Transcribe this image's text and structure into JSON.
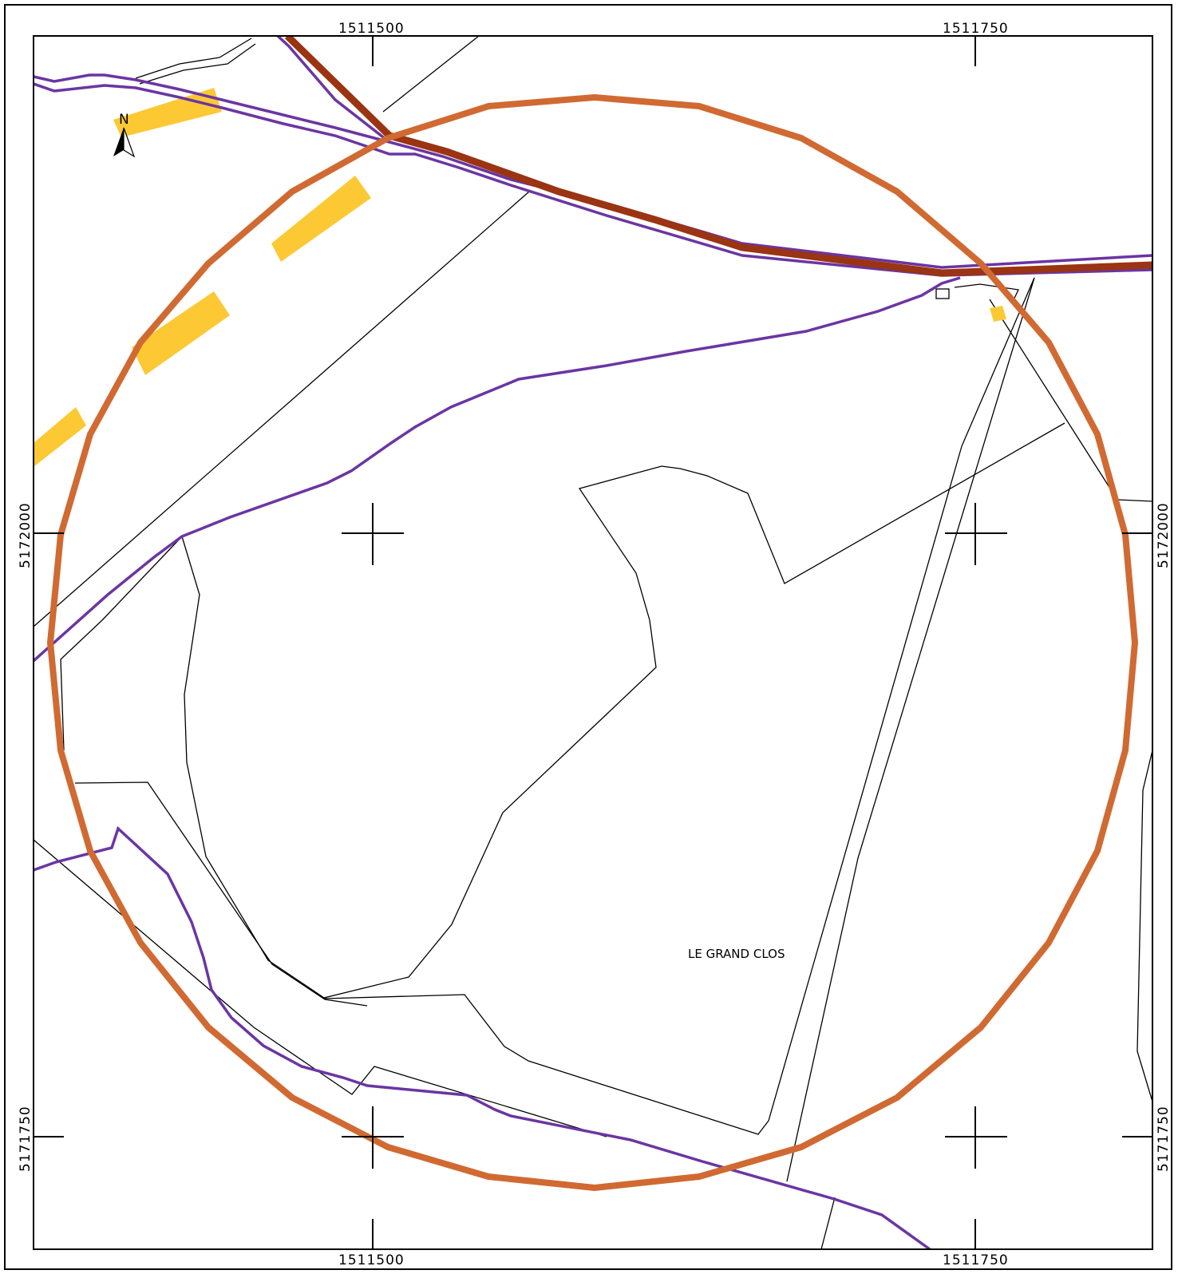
{
  "map": {
    "grid_labels": {
      "x_top": [
        "1511500",
        "1511750"
      ],
      "x_bottom": [
        "1511500",
        "1511750"
      ],
      "y_left": [
        "5172000",
        "5171750"
      ],
      "y_right": [
        "5172000",
        "5171750"
      ]
    },
    "place_label": "LE GRAND CLOS",
    "north_arrow_label": "N",
    "colors": {
      "buffer_circle": "#d06a32",
      "road_dark": "#9a3412",
      "road_outline": "#6b35a3",
      "building": "#fcc934",
      "parcel_line": "#000000"
    }
  }
}
